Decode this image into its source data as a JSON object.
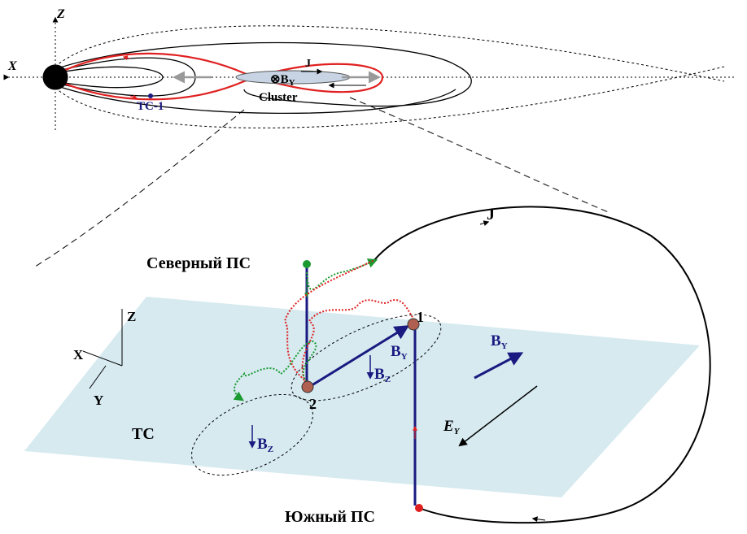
{
  "top": {
    "axis_z": "Z",
    "axis_x": "X",
    "current": "J",
    "field": {
      "base": "⊗B",
      "sub": "Y"
    },
    "tc1": "TC-1",
    "cluster": "Cluster"
  },
  "bottom": {
    "current": "J",
    "north": "Северный ПС",
    "south": "Южный ПС",
    "axis_z": "Z",
    "axis_x": "X",
    "axis_y": "Y",
    "point1": "1",
    "point2": "2",
    "by_center": {
      "base": "B",
      "sub": "Y"
    },
    "bz_center": {
      "base": "B",
      "sub": "Z"
    },
    "by_right": {
      "base": "B",
      "sub": "Y"
    },
    "tc": "TC",
    "bz_left": {
      "base": "B",
      "sub": "Z"
    },
    "ey": {
      "base": "E",
      "sub": "Y"
    }
  }
}
